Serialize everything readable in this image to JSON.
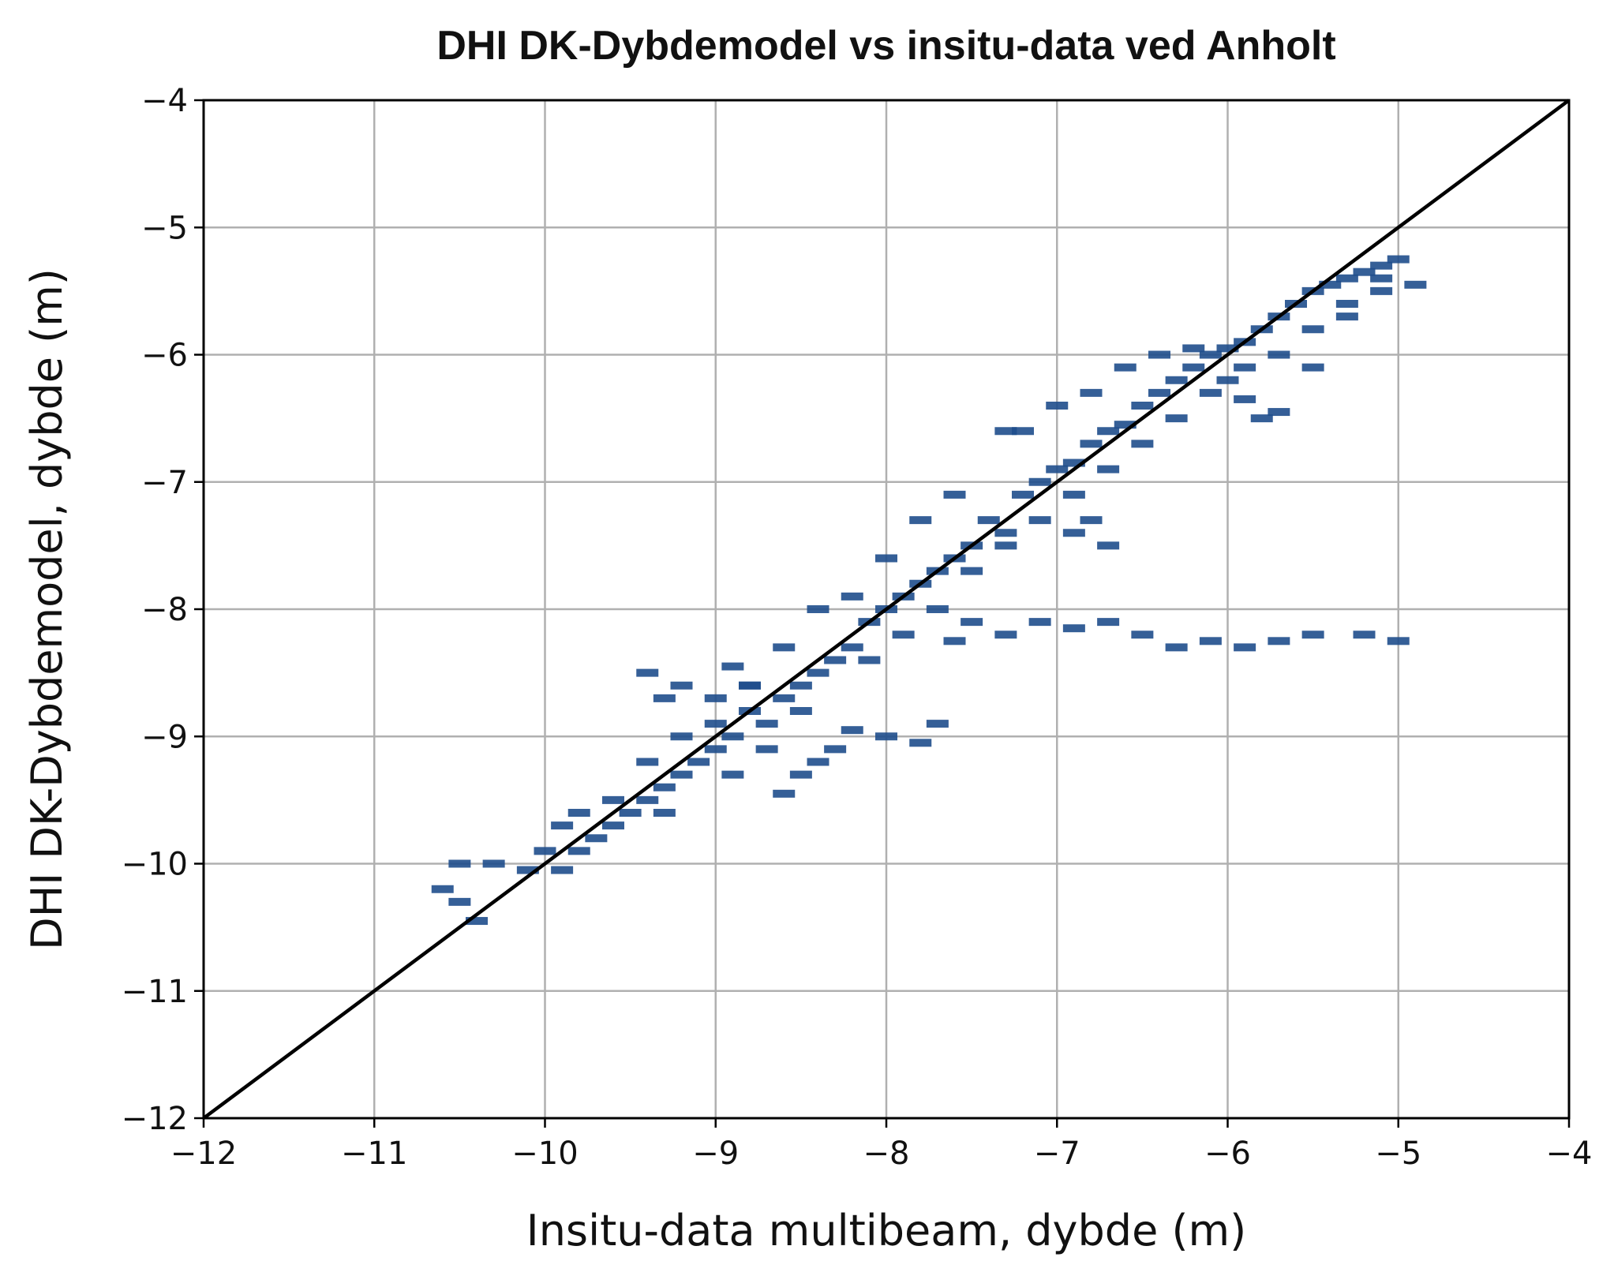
{
  "chart_data": {
    "type": "scatter",
    "title": "DHI DK-Dybdemodel vs insitu-data ved Anholt",
    "xlabel": "Insitu-data multibeam, dybde (m)",
    "ylabel": "DHI DK-Dybdemodel, dybde (m)",
    "xlim": [
      -12,
      -4
    ],
    "ylim": [
      -12,
      -4
    ],
    "xticks": [
      "−12",
      "−11",
      "−10",
      "−9",
      "−8",
      "−7",
      "−6",
      "−5",
      "−4"
    ],
    "yticks": [
      "−12",
      "−11",
      "−10",
      "−9",
      "−8",
      "−7",
      "−6",
      "−5",
      "−4"
    ],
    "grid": true,
    "reference_line": {
      "x": [
        -12,
        -4
      ],
      "y": [
        -12,
        -4
      ],
      "color": "#000000"
    },
    "series": [
      {
        "color": "#1f4e8c",
        "points": [
          [
            -10.6,
            -10.2
          ],
          [
            -10.5,
            -10.0
          ],
          [
            -10.4,
            -10.45
          ],
          [
            -10.5,
            -10.3
          ],
          [
            -10.3,
            -10.0
          ],
          [
            -10.1,
            -10.05
          ],
          [
            -10.0,
            -9.9
          ],
          [
            -9.9,
            -10.05
          ],
          [
            -9.8,
            -9.9
          ],
          [
            -9.9,
            -9.7
          ],
          [
            -9.7,
            -9.8
          ],
          [
            -9.6,
            -9.7
          ],
          [
            -9.5,
            -9.6
          ],
          [
            -9.4,
            -9.5
          ],
          [
            -9.3,
            -9.6
          ],
          [
            -9.3,
            -9.4
          ],
          [
            -9.2,
            -9.3
          ],
          [
            -9.1,
            -9.2
          ],
          [
            -9.0,
            -9.1
          ],
          [
            -9.0,
            -8.9
          ],
          [
            -8.9,
            -9.0
          ],
          [
            -8.8,
            -8.8
          ],
          [
            -8.7,
            -8.9
          ],
          [
            -8.6,
            -8.7
          ],
          [
            -8.5,
            -8.6
          ],
          [
            -8.4,
            -8.5
          ],
          [
            -8.3,
            -8.4
          ],
          [
            -8.2,
            -8.3
          ],
          [
            -8.1,
            -8.1
          ],
          [
            -8.0,
            -8.0
          ],
          [
            -7.9,
            -7.9
          ],
          [
            -7.8,
            -7.8
          ],
          [
            -7.7,
            -7.7
          ],
          [
            -7.6,
            -7.6
          ],
          [
            -7.5,
            -7.5
          ],
          [
            -7.4,
            -7.3
          ],
          [
            -7.3,
            -7.4
          ],
          [
            -7.2,
            -7.1
          ],
          [
            -7.1,
            -7.0
          ],
          [
            -7.0,
            -6.9
          ],
          [
            -6.9,
            -6.85
          ],
          [
            -6.8,
            -6.7
          ],
          [
            -6.7,
            -6.6
          ],
          [
            -6.6,
            -6.55
          ],
          [
            -6.5,
            -6.4
          ],
          [
            -6.4,
            -6.3
          ],
          [
            -6.3,
            -6.2
          ],
          [
            -6.2,
            -6.1
          ],
          [
            -6.1,
            -6.0
          ],
          [
            -6.0,
            -5.95
          ],
          [
            -5.9,
            -5.9
          ],
          [
            -5.8,
            -5.8
          ],
          [
            -5.7,
            -5.7
          ],
          [
            -5.6,
            -5.6
          ],
          [
            -5.5,
            -5.5
          ],
          [
            -5.4,
            -5.45
          ],
          [
            -5.3,
            -5.4
          ],
          [
            -5.2,
            -5.35
          ],
          [
            -5.1,
            -5.3
          ],
          [
            -5.0,
            -5.25
          ],
          [
            -4.9,
            -5.45
          ],
          [
            -9.4,
            -8.5
          ],
          [
            -9.3,
            -8.7
          ],
          [
            -9.2,
            -8.6
          ],
          [
            -8.9,
            -8.45
          ],
          [
            -8.8,
            -8.6
          ],
          [
            -8.6,
            -9.45
          ],
          [
            -8.5,
            -9.3
          ],
          [
            -8.4,
            -9.2
          ],
          [
            -8.3,
            -9.1
          ],
          [
            -8.2,
            -8.95
          ],
          [
            -8.0,
            -9.0
          ],
          [
            -7.8,
            -9.05
          ],
          [
            -7.7,
            -8.9
          ],
          [
            -7.6,
            -8.25
          ],
          [
            -7.5,
            -8.1
          ],
          [
            -7.3,
            -8.2
          ],
          [
            -7.1,
            -8.1
          ],
          [
            -6.9,
            -8.15
          ],
          [
            -6.7,
            -8.1
          ],
          [
            -6.5,
            -8.2
          ],
          [
            -6.3,
            -8.3
          ],
          [
            -6.1,
            -8.25
          ],
          [
            -5.9,
            -8.3
          ],
          [
            -5.7,
            -8.25
          ],
          [
            -5.5,
            -8.2
          ],
          [
            -5.2,
            -8.2
          ],
          [
            -5.0,
            -8.25
          ],
          [
            -7.2,
            -6.6
          ],
          [
            -7.0,
            -6.4
          ],
          [
            -6.8,
            -6.3
          ],
          [
            -6.6,
            -6.1
          ],
          [
            -6.4,
            -6.0
          ],
          [
            -6.2,
            -5.95
          ],
          [
            -6.0,
            -6.2
          ],
          [
            -5.9,
            -6.35
          ],
          [
            -5.8,
            -6.5
          ],
          [
            -5.7,
            -6.45
          ],
          [
            -5.5,
            -6.1
          ],
          [
            -5.3,
            -5.7
          ],
          [
            -5.1,
            -5.5
          ],
          [
            -6.8,
            -7.3
          ],
          [
            -6.7,
            -7.5
          ],
          [
            -6.9,
            -7.4
          ],
          [
            -7.3,
            -6.6
          ],
          [
            -7.6,
            -7.1
          ],
          [
            -7.8,
            -7.3
          ],
          [
            -8.0,
            -7.6
          ],
          [
            -8.2,
            -7.9
          ],
          [
            -8.4,
            -8.0
          ],
          [
            -8.6,
            -8.3
          ],
          [
            -8.8,
            -8.6
          ],
          [
            -9.0,
            -8.7
          ],
          [
            -9.2,
            -9.0
          ],
          [
            -9.4,
            -9.2
          ],
          [
            -9.6,
            -9.5
          ],
          [
            -9.8,
            -9.6
          ],
          [
            -8.9,
            -9.3
          ],
          [
            -8.7,
            -9.1
          ],
          [
            -8.5,
            -8.8
          ],
          [
            -8.1,
            -8.4
          ],
          [
            -7.9,
            -8.2
          ],
          [
            -7.7,
            -8.0
          ],
          [
            -7.5,
            -7.7
          ],
          [
            -7.3,
            -7.5
          ],
          [
            -7.1,
            -7.3
          ],
          [
            -6.9,
            -7.1
          ],
          [
            -6.7,
            -6.9
          ],
          [
            -6.5,
            -6.7
          ],
          [
            -6.3,
            -6.5
          ],
          [
            -6.1,
            -6.3
          ],
          [
            -5.9,
            -6.1
          ],
          [
            -5.7,
            -6.0
          ],
          [
            -5.5,
            -5.8
          ],
          [
            -5.3,
            -5.6
          ],
          [
            -5.1,
            -5.4
          ]
        ]
      }
    ]
  }
}
